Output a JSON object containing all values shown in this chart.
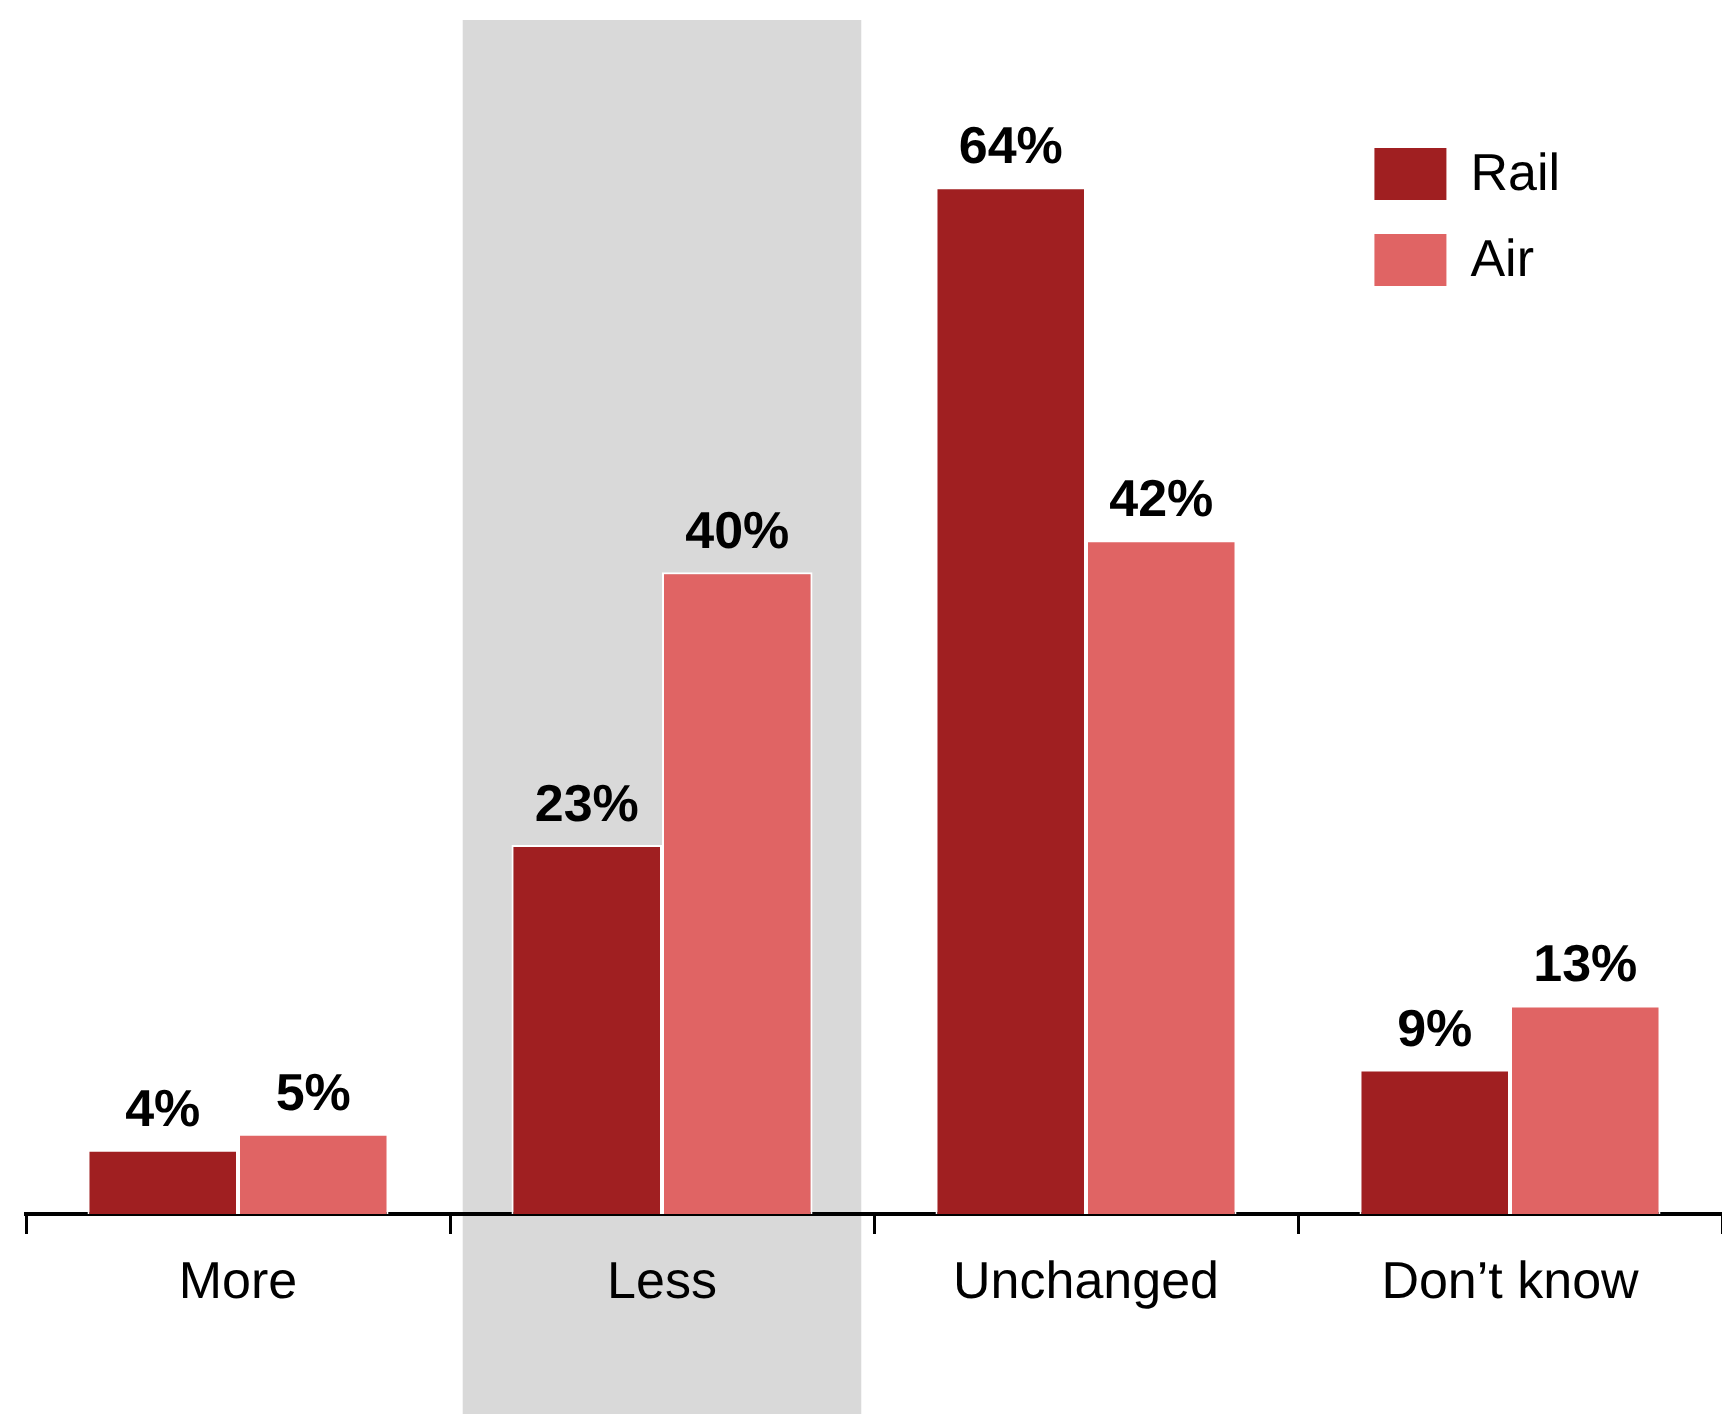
{
  "chart_data": {
    "type": "bar",
    "categories": [
      "More",
      "Less",
      "Unchanged",
      "Don’t know"
    ],
    "series": [
      {
        "name": "Rail",
        "color": "#a01f21",
        "values": [
          4,
          23,
          64,
          9
        ],
        "value_labels": [
          "4%",
          "23%",
          "64%",
          "9%"
        ]
      },
      {
        "name": "Air",
        "color": "#e06464",
        "values": [
          5,
          40,
          42,
          13
        ],
        "value_labels": [
          "5%",
          "40%",
          "42%",
          "13%"
        ]
      }
    ],
    "tick_labels": "x",
    "legend": "top right",
    "bands": [
      {
        "axis": "x",
        "from": "Less",
        "to": "Less",
        "color": "#d9d9d9"
      }
    ]
  }
}
